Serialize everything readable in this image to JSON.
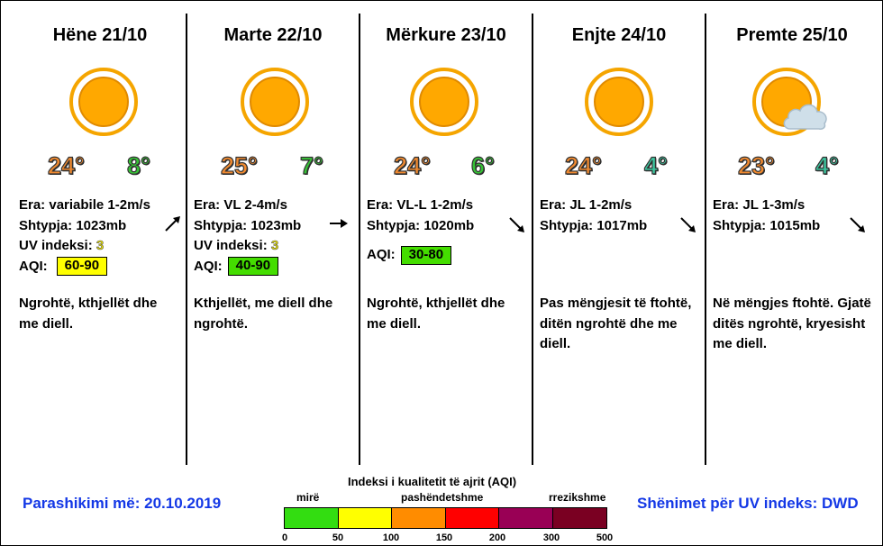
{
  "days": [
    {
      "title": "Hëne 21/10",
      "tmax": "24°",
      "tmin": "8°",
      "tmin_color": "green",
      "wind": "Era: variabile 1-2m/s",
      "pressure": "Shtypja: 1023mb",
      "uv_label": "UV indeksi: ",
      "uv_value": "3",
      "aqi_label": "AQI:",
      "aqi_value": "60-90",
      "aqi_color": "#ffff00",
      "desc": "Ngrohtë, kthjellët dhe me diell.",
      "icon": "sun-icon",
      "arrow": "arrow-northeast-icon"
    },
    {
      "title": "Marte 22/10",
      "tmax": "25°",
      "tmin": "7°",
      "tmin_color": "green",
      "wind": "Era: VL 2-4m/s",
      "pressure": "Shtypja: 1023mb",
      "uv_label": "UV indeksi: ",
      "uv_value": "3",
      "aqi_label": "AQI:",
      "aqi_value": "40-90",
      "aqi_color": "#44dd00",
      "desc": "Kthjellët, me diell dhe ngrohtë.",
      "icon": "sun-icon",
      "arrow": "arrow-east-icon"
    },
    {
      "title": "Mërkure 23/10",
      "tmax": "24°",
      "tmin": "6°",
      "tmin_color": "green",
      "wind": "Era: VL-L 1-2m/s",
      "pressure": "Shtypja: 1020mb",
      "aqi_label": "AQI:",
      "aqi_value": "30-80",
      "aqi_color": "#44dd00",
      "desc": "Ngrohtë, kthjellët dhe me diell.",
      "icon": "sun-icon",
      "arrow": "arrow-southeast-icon"
    },
    {
      "title": "Enjte 24/10",
      "tmax": "24°",
      "tmin": "4°",
      "tmin_color": "teal",
      "wind": "Era: JL 1-2m/s",
      "pressure": "Shtypja: 1017mb",
      "desc": "Pas mëngjesit të ftohtë, ditën ngrohtë dhe me diell.",
      "icon": "sun-icon",
      "arrow": "arrow-southeast-icon"
    },
    {
      "title": "Premte 25/10",
      "tmax": "23°",
      "tmin": "4°",
      "tmin_color": "teal",
      "wind": "Era: JL 1-3m/s",
      "pressure": "Shtypja: 1015mb",
      "desc": "Në mëngjes ftohtë. Gjatë ditës ngrohtë, kryesisht me diell.",
      "icon": "sun-cloud-icon",
      "arrow": "arrow-southeast-icon"
    }
  ],
  "footer": {
    "issued": "Parashikimi më: 20.10.2019",
    "uv_note": "Shënimet për UV indeks: DWD"
  },
  "aqi_scale": {
    "title": "Indeksi i kualitetit të ajrit (AQI)",
    "labels": [
      "mirë",
      "pashëndetshme",
      "rrezikshme"
    ],
    "ticks": [
      "0",
      "50",
      "100",
      "150",
      "200",
      "300",
      "500"
    ],
    "colors": [
      "#33dd11",
      "#ffff00",
      "#ff8c00",
      "#ff0000",
      "#990055",
      "#7a0022"
    ]
  }
}
